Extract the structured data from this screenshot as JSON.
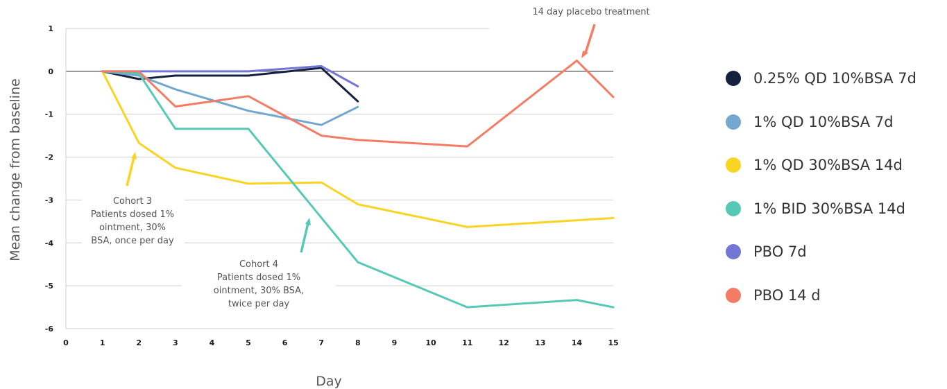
{
  "chart_data": {
    "type": "line",
    "title": "",
    "xlabel": "Day",
    "ylabel": "Mean change from baseline",
    "xlim": [
      0,
      15
    ],
    "ylim": [
      -6,
      1
    ],
    "x_ticks": [
      0,
      1,
      2,
      3,
      4,
      5,
      6,
      7,
      8,
      9,
      10,
      11,
      12,
      13,
      14,
      15
    ],
    "y_ticks": [
      1,
      0,
      -1,
      -2,
      -3,
      -4,
      -5,
      -6
    ],
    "grid": "horizontal",
    "legend_position": "right",
    "series": [
      {
        "name": "0.25% QD 10%BSA 7d",
        "color": "#14213d",
        "x": [
          1,
          2,
          3,
          5,
          7,
          8
        ],
        "y": [
          0,
          -0.18,
          -0.1,
          -0.1,
          0.08,
          -0.7
        ]
      },
      {
        "name": "1% QD 10%BSA 7d",
        "color": "#72a7cf",
        "x": [
          1,
          2,
          3,
          5,
          7,
          8
        ],
        "y": [
          0,
          -0.1,
          -0.42,
          -0.92,
          -1.25,
          -0.83
        ]
      },
      {
        "name": "1% QD 30%BSA 14d",
        "color": "#f9d423",
        "x": [
          1,
          2,
          3,
          5,
          7,
          8,
          11,
          15
        ],
        "y": [
          0,
          -1.67,
          -2.25,
          -2.62,
          -2.59,
          -3.1,
          -3.63,
          -3.42
        ]
      },
      {
        "name": "1% BID 30%BSA 14d",
        "color": "#56c9b6",
        "x": [
          1,
          2,
          3,
          5,
          8,
          11,
          14,
          15
        ],
        "y": [
          0,
          -0.05,
          -1.34,
          -1.34,
          -4.45,
          -5.5,
          -5.33,
          -5.5
        ]
      },
      {
        "name": "PBO 7d",
        "color": "#7177d2",
        "x": [
          1,
          2,
          3,
          5,
          7,
          8
        ],
        "y": [
          0,
          0,
          0,
          0,
          0.12,
          -0.35
        ]
      },
      {
        "name": "PBO 14 d",
        "color": "#f47c64",
        "x": [
          1,
          2,
          3,
          5,
          7,
          8,
          11,
          14,
          15
        ],
        "y": [
          0,
          0,
          -0.82,
          -0.58,
          -1.5,
          -1.6,
          -1.75,
          0.25,
          -0.6
        ]
      }
    ],
    "annotations": [
      {
        "id": "placebo",
        "text": [
          "14 day placebo treatment"
        ],
        "color": "#f47c64"
      },
      {
        "id": "cohort3",
        "text": [
          "Cohort 3",
          "Patients dosed 1%",
          "ointment, 30%",
          "BSA, once per day"
        ],
        "color": "#f9d423"
      },
      {
        "id": "cohort4",
        "text": [
          "Cohort 4",
          "Patients dosed 1%",
          "ointment, 30% BSA,",
          "twice per day"
        ],
        "color": "#56c9b6"
      }
    ]
  }
}
